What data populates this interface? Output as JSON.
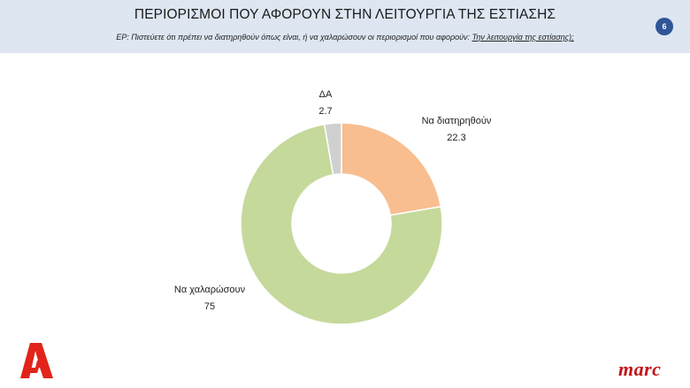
{
  "header": {
    "title": "ΠΕΡΙΟΡΙΣΜΟΙ ΠΟΥ ΑΦΟΡΟΥΝ ΣΤΗΝ ΛΕΙΤΟΥΡΓΙΑ ΤΗΣ ΕΣΤΙΑΣΗΣ",
    "question_prefix": "ΕΡ:  Πιστεύετε ότι πρέπει  να διατηρηθούν όπως είναι, ή να χαλαρώσουν οι περιορισμοί που αφορούν: ",
    "question_emphasis": "Την λειτουργία της εστίασης);",
    "page_number": "6"
  },
  "logos": {
    "left_logo_name": "alpha-logo",
    "right_logo_text": "marc",
    "brand_color": "#c0161b"
  },
  "chart_data": {
    "type": "pie",
    "style": "donut",
    "title": "",
    "slices": [
      {
        "label": "Να διατηρηθούν",
        "value": 22.3,
        "value_text": "22.3",
        "color": "#f8be8f"
      },
      {
        "label": "Να χαλαρώσουν",
        "value": 75,
        "value_text": "75",
        "color": "#c5d99b"
      },
      {
        "label": "ΔΑ",
        "value": 2.7,
        "value_text": "2.7",
        "color": "#d0d0d0"
      }
    ]
  }
}
